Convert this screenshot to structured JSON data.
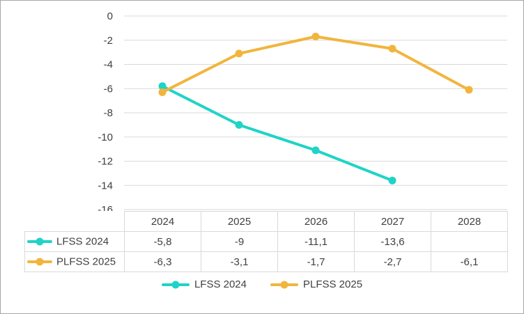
{
  "chart_data": {
    "type": "line",
    "title": "",
    "xlabel": "",
    "ylabel": "",
    "categories": [
      "2024",
      "2025",
      "2026",
      "2027",
      "2028"
    ],
    "series": [
      {
        "name": "LFSS 2024",
        "color": "#1FD4C6",
        "values": [
          -5.8,
          -9,
          -11.1,
          -13.6,
          null
        ]
      },
      {
        "name": "PLFSS 2025",
        "color": "#F1B53D",
        "values": [
          -6.3,
          -3.1,
          -1.7,
          -2.7,
          -6.1
        ]
      }
    ],
    "ylim": [
      -16,
      0
    ],
    "yticks": [
      0,
      -2,
      -4,
      -6,
      -8,
      -10,
      -12,
      -14,
      -16
    ],
    "grid": true,
    "legend_position": "bottom"
  },
  "table": {
    "header": [
      "2024",
      "2025",
      "2026",
      "2027",
      "2028"
    ],
    "rows": [
      {
        "label": "LFSS 2024",
        "cells": [
          "-5,8",
          "-9",
          "-11,1",
          "-13,6",
          ""
        ]
      },
      {
        "label": "PLFSS 2025",
        "cells": [
          "-6,3",
          "-3,1",
          "-1,7",
          "-2,7",
          "-6,1"
        ]
      }
    ]
  },
  "legend": {
    "items": [
      {
        "label": "LFSS 2024"
      },
      {
        "label": "PLFSS 2025"
      }
    ]
  },
  "colors": {
    "series1": "#1FD4C6",
    "series2": "#F1B53D",
    "grid": "#D9D9D9",
    "text": "#404040",
    "frame_border": "#A6A6A6"
  }
}
